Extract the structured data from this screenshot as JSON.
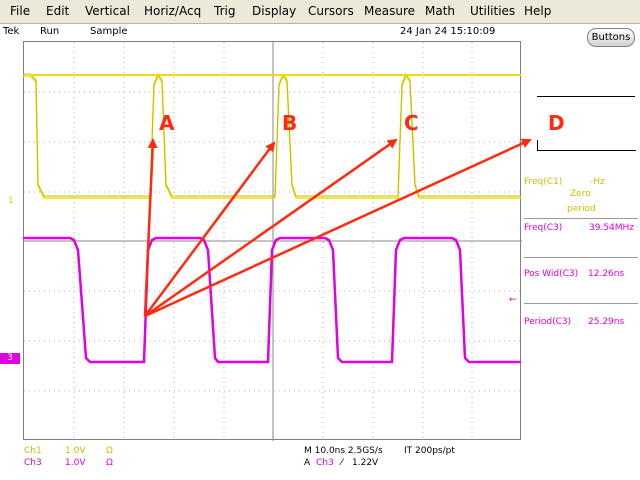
{
  "menu": {
    "file": "File",
    "edit": "Edit",
    "vertical": "Vertical",
    "horiz": "Horiz/Acq",
    "trig": "Trig",
    "display": "Display",
    "cursors": "Cursors",
    "measure": "Measure",
    "math": "Math",
    "utilities": "Utilities",
    "help": "Help"
  },
  "status": {
    "brand": "Tek",
    "run_state": "Run",
    "acq_mode": "Sample",
    "datetime": "24 Jan 24 15:10:09"
  },
  "buttons_label": "Buttons",
  "channel_markers": {
    "ch1": "1",
    "ch3": "3"
  },
  "measurements": {
    "freq_c1_label": "Freq(C1)",
    "freq_c1_value": "-Hz",
    "freq_c1_note_1": "Zero",
    "freq_c1_note_2": "period",
    "freq_c3_label": "Freq(C3)",
    "freq_c3_value": "39.54MHz",
    "poswid_c3_label": "Pos Wid(C3)",
    "poswid_c3_value": "12.26ns",
    "period_c3_label": "Period(C3)",
    "period_c3_value": "25.29ns"
  },
  "bottom": {
    "ch1_name": "Ch1",
    "ch1_scale": "1.0V",
    "ch1_coupling": "Ω",
    "ch3_name": "Ch3",
    "ch3_scale": "1.0V",
    "ch3_coupling": "Ω",
    "timebase": "M 10.0ns 2.5GS/s",
    "record": "IT 200ps/pt",
    "trigger_prefix": "A",
    "trigger_source": "Ch3",
    "trigger_slope": "⁄",
    "trigger_level": "1.22V"
  },
  "annotations": {
    "a": "A",
    "b": "B",
    "c": "C",
    "d": "D"
  },
  "colors": {
    "ch1": "#e8e000",
    "ch3": "#e000e0",
    "annotation": "#ff2a10",
    "grid": "#9a9a9a"
  }
}
